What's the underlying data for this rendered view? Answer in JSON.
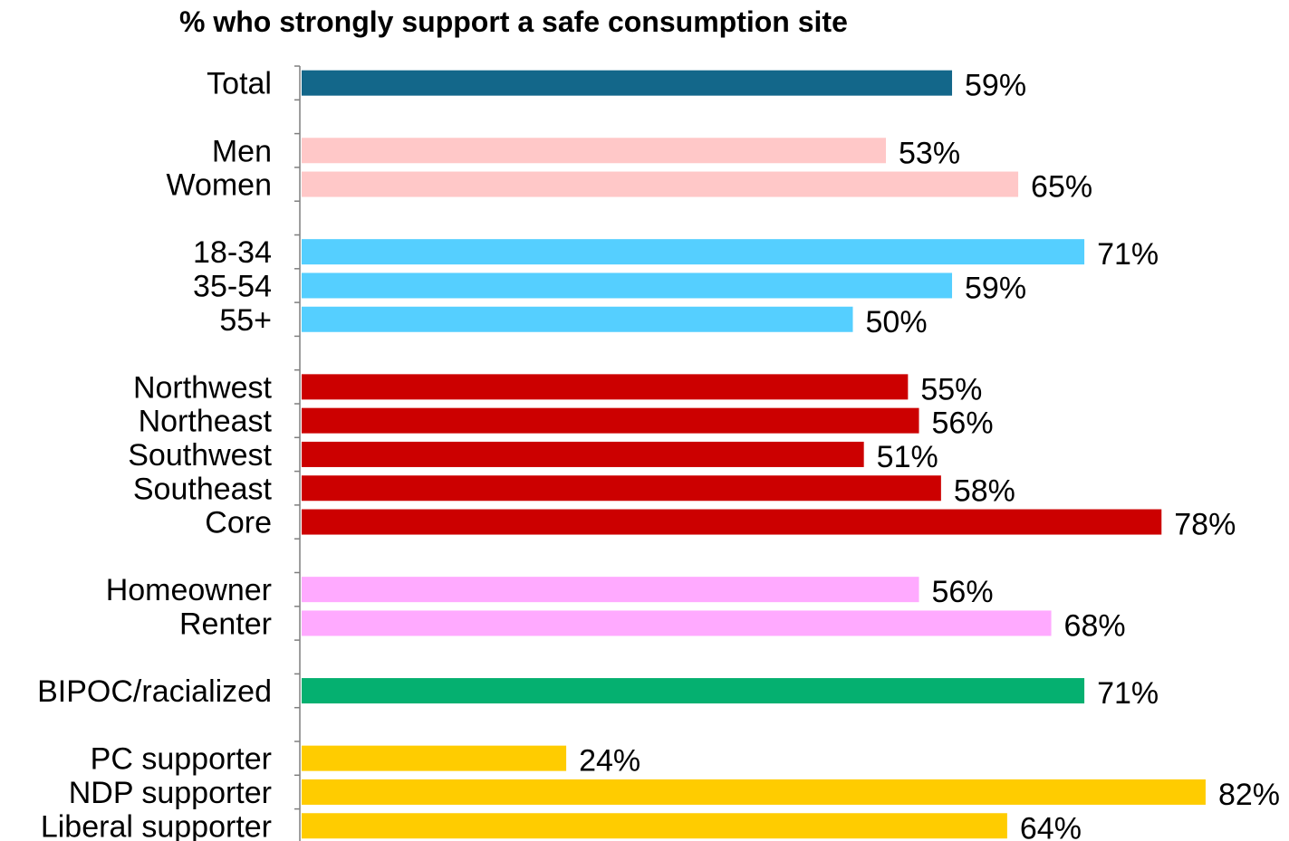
{
  "chart_data": {
    "type": "bar",
    "orientation": "horizontal",
    "title": "% who strongly support a safe consumption site",
    "xlabel": "",
    "ylabel": "",
    "xlim": [
      0,
      100
    ],
    "grid": false,
    "value_suffix": "%",
    "groups": [
      {
        "color": "#13678a",
        "items": [
          {
            "category": "Total",
            "value": 59,
            "label": "59%"
          }
        ]
      },
      {
        "color": "#ffc8c8",
        "items": [
          {
            "category": "Men",
            "value": 53,
            "label": "53%"
          },
          {
            "category": "Women",
            "value": 65,
            "label": "65%"
          }
        ]
      },
      {
        "color": "#55cfff",
        "items": [
          {
            "category": "18-34",
            "value": 71,
            "label": "71%"
          },
          {
            "category": "35-54",
            "value": 59,
            "label": "59%"
          },
          {
            "category": "55+",
            "value": 50,
            "label": "50%"
          }
        ]
      },
      {
        "color": "#cc0000",
        "items": [
          {
            "category": "Northwest",
            "value": 55,
            "label": "55%"
          },
          {
            "category": "Northeast",
            "value": 56,
            "label": "56%"
          },
          {
            "category": "Southwest",
            "value": 51,
            "label": "51%"
          },
          {
            "category": "Southeast",
            "value": 58,
            "label": "58%"
          },
          {
            "category": "Core",
            "value": 78,
            "label": "78%"
          }
        ]
      },
      {
        "color": "#ffaaff",
        "items": [
          {
            "category": "Homeowner",
            "value": 56,
            "label": "56%"
          },
          {
            "category": "Renter",
            "value": 68,
            "label": "68%"
          }
        ]
      },
      {
        "color": "#05b070",
        "items": [
          {
            "category": "BIPOC/racialized",
            "value": 71,
            "label": "71%"
          }
        ]
      },
      {
        "color": "#ffcc00",
        "items": [
          {
            "category": "PC supporter",
            "value": 24,
            "label": "24%"
          },
          {
            "category": "NDP supporter",
            "value": 82,
            "label": "82%"
          },
          {
            "category": "Liberal supporter",
            "value": 64,
            "label": "64%"
          }
        ]
      }
    ]
  }
}
